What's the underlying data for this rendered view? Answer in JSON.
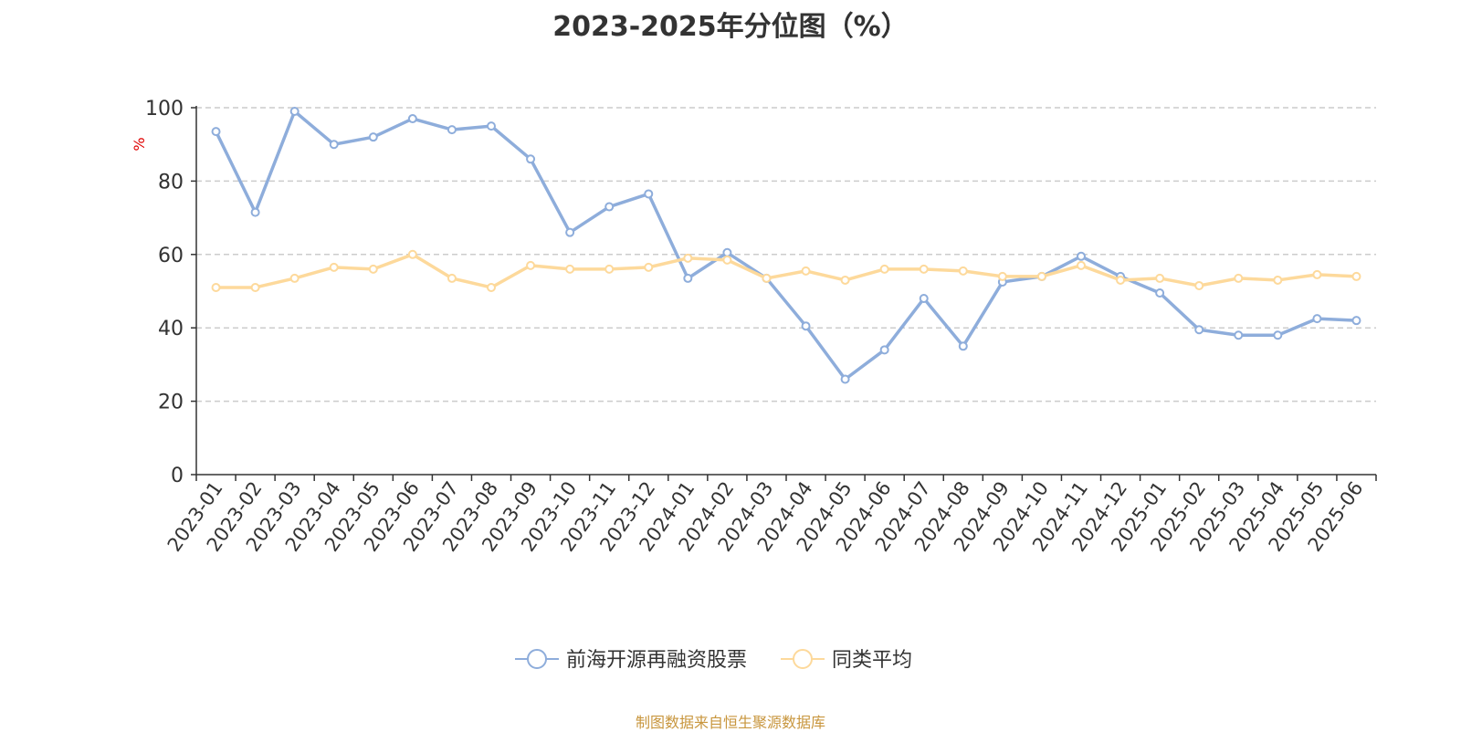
{
  "title": "2023-2025年分位图（%）",
  "footer": "制图数据来自恒生聚源数据库",
  "colors": {
    "series1": "#8eaddb",
    "series2": "#fdd99b",
    "ylabel": "#e00000",
    "grid": "#cccccc",
    "axis": "#333333"
  },
  "chart_data": {
    "type": "line",
    "ylabel": "%",
    "ylim": [
      0,
      100
    ],
    "yticks": [
      0,
      20,
      40,
      60,
      80,
      100
    ],
    "grid": true,
    "legend_position": "bottom-center",
    "categories": [
      "2023-01",
      "2023-02",
      "2023-03",
      "2023-04",
      "2023-05",
      "2023-06",
      "2023-07",
      "2023-08",
      "2023-09",
      "2023-10",
      "2023-11",
      "2023-12",
      "2024-01",
      "2024-02",
      "2024-03",
      "2024-04",
      "2024-05",
      "2024-06",
      "2024-07",
      "2024-08",
      "2024-09",
      "2024-10",
      "2024-11",
      "2024-12",
      "2025-01",
      "2025-02",
      "2025-03",
      "2025-04",
      "2025-05",
      "2025-06"
    ],
    "series": [
      {
        "name": "前海开源再融资股票",
        "values": [
          93.5,
          71.5,
          99,
          90,
          92,
          97,
          94,
          95,
          86,
          66,
          73,
          76.5,
          53.5,
          60.5,
          53.5,
          40.5,
          26,
          34,
          48,
          35,
          52.5,
          54,
          59.5,
          54,
          49.5,
          39.5,
          38,
          38,
          42.5,
          42
        ]
      },
      {
        "name": "同类平均",
        "values": [
          51,
          51,
          53.5,
          56.5,
          56,
          60,
          53.5,
          51,
          57,
          56,
          56,
          56.5,
          59,
          58.5,
          53.5,
          55.5,
          53,
          56,
          56,
          55.5,
          54,
          54,
          57,
          53,
          53.5,
          51.5,
          53.5,
          53,
          54.5,
          54
        ]
      }
    ]
  }
}
